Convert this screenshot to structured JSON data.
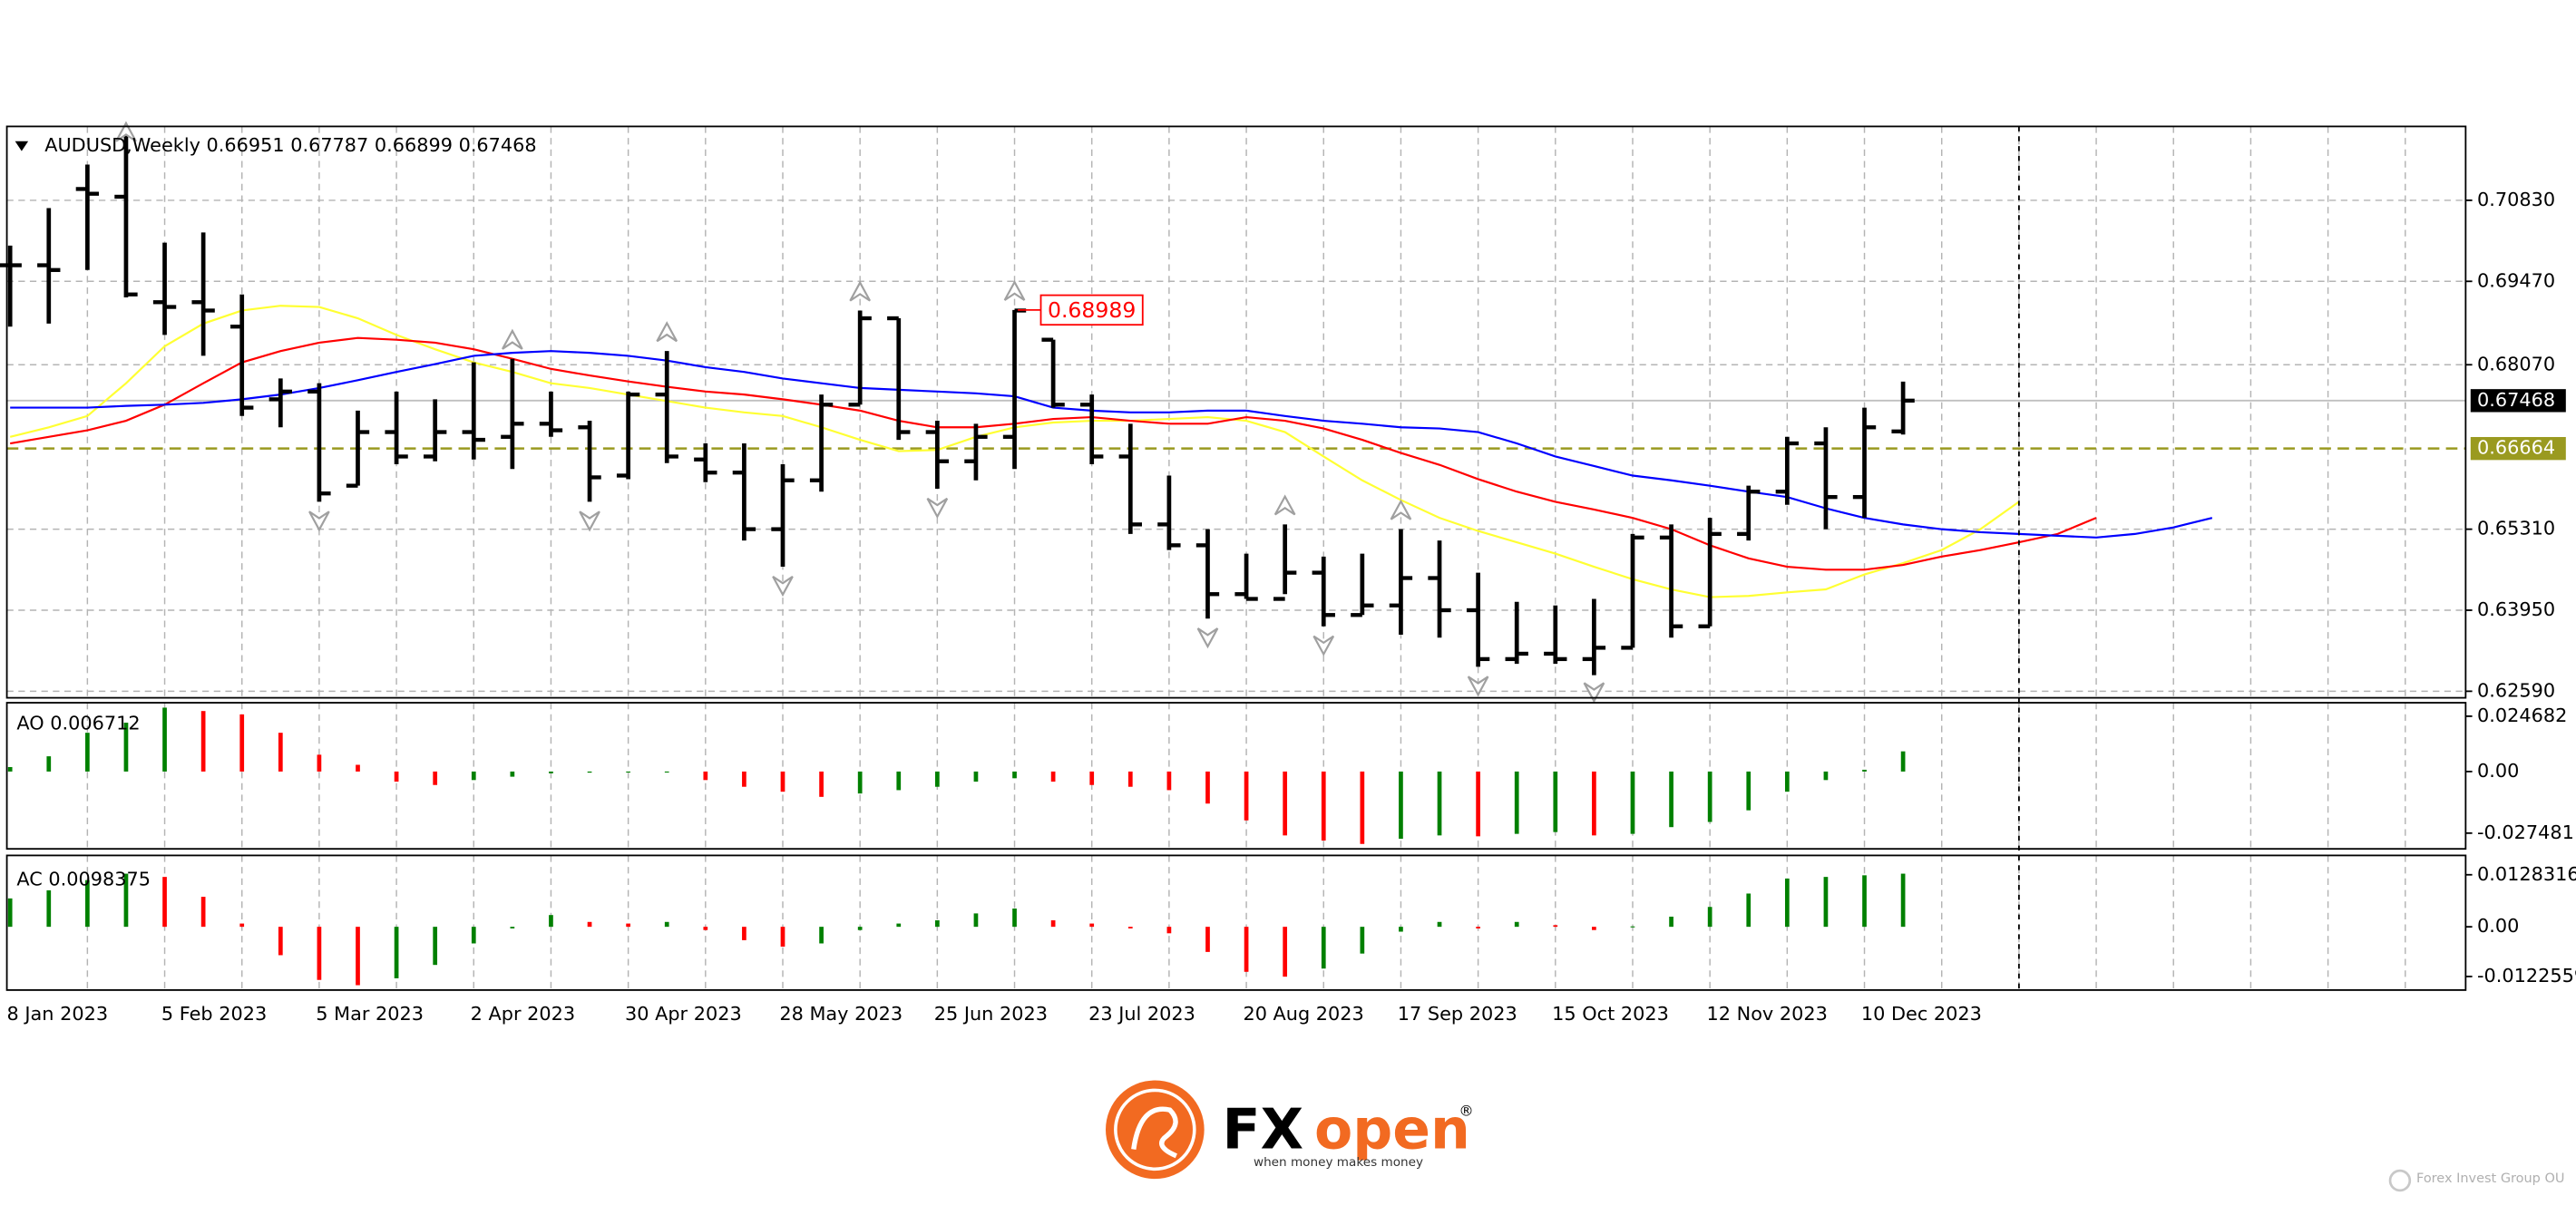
{
  "chart_data": [
    {
      "type": "ohlc",
      "header": "AUDUSD,Weekly  0.66951 0.67787 0.66899 0.67468",
      "categories": [
        "8 Jan 2023",
        null,
        null,
        null,
        "5 Feb 2023",
        null,
        null,
        null,
        "5 Mar 2023",
        null,
        null,
        null,
        "2 Apr 2023",
        null,
        null,
        null,
        "30 Apr 2023",
        null,
        null,
        null,
        "28 May 2023",
        null,
        null,
        null,
        "25 Jun 2023",
        null,
        null,
        null,
        "23 Jul 2023",
        null,
        null,
        null,
        "20 Aug 2023",
        null,
        null,
        null,
        "17 Sep 2023",
        null,
        null,
        null,
        "15 Oct 2023",
        null,
        null,
        null,
        "12 Nov 2023",
        null,
        null,
        null,
        "10 Dec 2023",
        null,
        null,
        null,
        null,
        null,
        null,
        null,
        null,
        null
      ],
      "open": [
        0.6974,
        0.6974,
        0.7102,
        0.7089,
        0.6912,
        0.6912,
        0.6871,
        0.6749,
        0.6762,
        0.6604,
        0.6694,
        0.6653,
        0.6694,
        0.6686,
        0.6708,
        0.6702,
        0.6621,
        0.6757,
        0.6648,
        0.6626,
        0.6531,
        0.6613,
        0.674,
        0.6885,
        0.6694,
        0.6645,
        0.6686,
        0.6849,
        0.674,
        0.6653,
        0.6539,
        0.6504,
        0.6422,
        0.6414,
        0.6458,
        0.6387,
        0.6403,
        0.6449,
        0.6395,
        0.6313,
        0.6322,
        0.6313,
        0.6332,
        0.6517,
        0.6368,
        0.6523,
        0.6594,
        0.6675,
        0.6585,
        0.66951,
        null,
        null,
        null,
        null,
        null,
        null,
        null,
        null
      ],
      "high": [
        0.7007,
        0.707,
        0.7143,
        0.7203,
        0.7012,
        0.7029,
        0.6925,
        0.6784,
        0.6776,
        0.673,
        0.6762,
        0.6749,
        0.6811,
        0.6817,
        0.6762,
        0.6713,
        0.6762,
        0.683,
        0.6675,
        0.6675,
        0.664,
        0.6757,
        0.6898,
        0.6885,
        0.6713,
        0.6708,
        0.68989,
        0.6849,
        0.6757,
        0.6708,
        0.6621,
        0.6531,
        0.649,
        0.6539,
        0.6485,
        0.649,
        0.6531,
        0.6512,
        0.6458,
        0.6409,
        0.6403,
        0.6414,
        0.6523,
        0.6539,
        0.655,
        0.6604,
        0.6686,
        0.6702,
        0.6735,
        0.67787,
        null,
        null,
        null,
        null,
        null,
        null,
        null,
        null
      ],
      "low": [
        0.6871,
        0.6876,
        0.6966,
        0.692,
        0.6857,
        0.6822,
        0.6721,
        0.6702,
        0.6577,
        0.6604,
        0.664,
        0.6645,
        0.6648,
        0.6632,
        0.6686,
        0.6577,
        0.6615,
        0.6642,
        0.661,
        0.6512,
        0.6468,
        0.6594,
        0.674,
        0.6681,
        0.6599,
        0.6613,
        0.6632,
        0.6735,
        0.664,
        0.6523,
        0.6496,
        0.6381,
        0.6414,
        0.6422,
        0.6368,
        0.6387,
        0.6354,
        0.6349,
        0.63,
        0.6305,
        0.6305,
        0.6286,
        0.6332,
        0.6349,
        0.6368,
        0.6512,
        0.6572,
        0.6531,
        0.655,
        0.66899,
        null,
        null,
        null,
        null,
        null,
        null,
        null,
        null
      ],
      "close": [
        0.6974,
        0.6966,
        0.7094,
        0.6925,
        0.6904,
        0.6898,
        0.6735,
        0.6762,
        0.6591,
        0.6694,
        0.6653,
        0.6694,
        0.6681,
        0.6708,
        0.6697,
        0.6618,
        0.6757,
        0.6653,
        0.6626,
        0.6531,
        0.6613,
        0.674,
        0.6885,
        0.6694,
        0.6645,
        0.6686,
        0.6898,
        0.674,
        0.6653,
        0.6539,
        0.6504,
        0.6422,
        0.6414,
        0.6458,
        0.6387,
        0.6403,
        0.6449,
        0.6395,
        0.6313,
        0.6322,
        0.6313,
        0.6332,
        0.6517,
        0.6368,
        0.6523,
        0.6594,
        0.6675,
        0.6585,
        0.6702,
        0.67468,
        null,
        null,
        null,
        null,
        null,
        null,
        null,
        null
      ],
      "bar_color": "#000000",
      "ylim": [
        0.6248,
        0.7207
      ],
      "yticks": [
        {
          "value": 0.7083,
          "label": "0.70830"
        },
        {
          "value": 0.6947,
          "label": "0.69470"
        },
        {
          "value": 0.6807,
          "label": "0.68070"
        },
        {
          "value": 0.6531,
          "label": "0.65310"
        },
        {
          "value": 0.6395,
          "label": "0.63950"
        },
        {
          "value": 0.6259,
          "label": "0.62590"
        }
      ],
      "grid": true,
      "overlays": [
        {
          "color": "#ffff33",
          "values": [
            0.6686,
            0.6702,
            0.6721,
            0.6776,
            0.6838,
            0.6876,
            0.6898,
            0.6906,
            0.6904,
            0.6885,
            0.6857,
            0.6833,
            0.6811,
            0.6795,
            0.6776,
            0.6768,
            0.6757,
            0.6746,
            0.6735,
            0.6727,
            0.6721,
            0.6702,
            0.6681,
            0.6662,
            0.6664,
            0.6686,
            0.6702,
            0.671,
            0.6713,
            0.6713,
            0.6716,
            0.6719,
            0.6713,
            0.6694,
            0.6653,
            0.6613,
            0.658,
            0.655,
            0.6528,
            0.6509,
            0.649,
            0.6468,
            0.6447,
            0.643,
            0.6417,
            0.6419,
            0.6425,
            0.643,
            0.6455,
            0.6474,
            0.6496,
            0.6531,
            0.6577,
            null,
            null,
            null,
            null,
            null
          ]
        },
        {
          "color": "#ff0000",
          "values": [
            0.6675,
            0.6686,
            0.6697,
            0.6713,
            0.674,
            0.6776,
            0.6811,
            0.683,
            0.6844,
            0.6852,
            0.6849,
            0.6844,
            0.6833,
            0.6817,
            0.68,
            0.6789,
            0.6779,
            0.677,
            0.6762,
            0.6757,
            0.6749,
            0.674,
            0.673,
            0.6713,
            0.6702,
            0.6702,
            0.6708,
            0.6716,
            0.6719,
            0.6713,
            0.6708,
            0.6708,
            0.6719,
            0.6713,
            0.67,
            0.6681,
            0.6659,
            0.6639,
            0.6615,
            0.6594,
            0.6577,
            0.6564,
            0.655,
            0.6531,
            0.6504,
            0.6482,
            0.6468,
            0.6463,
            0.6463,
            0.6471,
            0.6485,
            0.6496,
            0.6509,
            0.6523,
            0.655,
            null,
            null,
            null
          ]
        },
        {
          "color": "#0000ff",
          "values": [
            0.6735,
            0.6735,
            0.6735,
            0.6738,
            0.674,
            0.6743,
            0.6749,
            0.6757,
            0.6768,
            0.6781,
            0.6795,
            0.6808,
            0.6822,
            0.6827,
            0.683,
            0.6827,
            0.6822,
            0.6814,
            0.6803,
            0.6795,
            0.6784,
            0.6776,
            0.6768,
            0.6765,
            0.6762,
            0.6759,
            0.6754,
            0.6735,
            0.673,
            0.6727,
            0.6727,
            0.673,
            0.673,
            0.6721,
            0.6713,
            0.6708,
            0.6702,
            0.67,
            0.6694,
            0.6675,
            0.6653,
            0.6637,
            0.6621,
            0.6613,
            0.6604,
            0.6594,
            0.6585,
            0.6566,
            0.655,
            0.6539,
            0.6531,
            0.6526,
            0.6523,
            0.652,
            0.6517,
            0.6523,
            0.6534,
            0.655
          ]
        }
      ],
      "hlines": [
        {
          "value": 0.67468,
          "label": "0.67468",
          "color": "#c0c0c0",
          "label_bg": "#000000",
          "dashed": false
        },
        {
          "value": 0.66664,
          "label": "0.66664",
          "color": "#9a9a20",
          "label_bg": "#9a9a20",
          "dashed": true
        }
      ],
      "annotation": {
        "index": 26,
        "value": 0.68989,
        "label": "0.68989",
        "color": "#ff0000"
      },
      "fractals": {
        "color": "#a0a0a0",
        "up": [
          3,
          13,
          17,
          22,
          26,
          33,
          36
        ],
        "down": [
          8,
          15,
          20,
          24,
          31,
          34,
          38,
          41
        ]
      },
      "separator_index": 52
    },
    {
      "type": "histogram",
      "label": "AO 0.006712",
      "up_color": "#008000",
      "down_color": "#ff0000",
      "values": [
        0.002,
        0.0068,
        0.0173,
        0.0218,
        0.0285,
        0.027,
        0.0255,
        0.0173,
        0.0075,
        0.003,
        -0.0045,
        -0.006,
        -0.0038,
        -0.0023,
        -0.0008,
        -0.0005,
        -0.0003,
        -0.0002,
        -0.0038,
        -0.0068,
        -0.009,
        -0.0113,
        -0.0098,
        -0.0083,
        -0.0068,
        -0.0045,
        -0.003,
        -0.0045,
        -0.006,
        -0.0068,
        -0.0083,
        -0.0143,
        -0.0218,
        -0.0285,
        -0.0308,
        -0.0323,
        -0.03,
        -0.0285,
        -0.0289,
        -0.0278,
        -0.027,
        -0.0285,
        -0.0278,
        -0.0248,
        -0.0225,
        -0.0173,
        -0.009,
        -0.0038,
        0.0008,
        0.009,
        null,
        null,
        null,
        null,
        null,
        null,
        null,
        null
      ],
      "ylim": [
        -0.0345,
        0.0307
      ],
      "yticks": [
        0.024682,
        {
          "value": 0,
          "label": "0.00"
        },
        -0.027481
      ]
    },
    {
      "type": "histogram",
      "label": "AC 0.0098375",
      "up_color": "#008000",
      "down_color": "#ff0000",
      "values": [
        0.007,
        0.009,
        0.0115,
        0.0131,
        0.0123,
        0.0074,
        0.0008,
        -0.007,
        -0.0131,
        -0.0144,
        -0.0127,
        -0.0094,
        -0.0041,
        -0.0004,
        0.0029,
        0.0012,
        0.0008,
        0.0012,
        -0.0008,
        -0.0033,
        -0.0049,
        -0.0041,
        -0.0008,
        0.0008,
        0.0016,
        0.0033,
        0.0045,
        0.0016,
        0.0008,
        -0.0004,
        -0.0016,
        -0.0062,
        -0.0111,
        -0.0123,
        -0.0103,
        -0.0066,
        -0.0012,
        0.0012,
        -0.0004,
        0.0012,
        0.0004,
        -0.0008,
        0.0001,
        0.0025,
        0.0049,
        0.0082,
        0.0119,
        0.0123,
        0.0127,
        0.0131,
        null,
        null,
        null,
        null,
        null,
        null,
        null,
        null
      ],
      "ylim": [
        -0.0156,
        0.0176
      ],
      "yticks": [
        0.0128316,
        {
          "value": 0,
          "label": "0.00"
        },
        -0.0122559
      ]
    }
  ],
  "branding": {
    "logo_fx": "FX",
    "logo_open": "open",
    "registered": "®",
    "tagline": "when money makes money",
    "company": "Forex Invest Group OU"
  }
}
